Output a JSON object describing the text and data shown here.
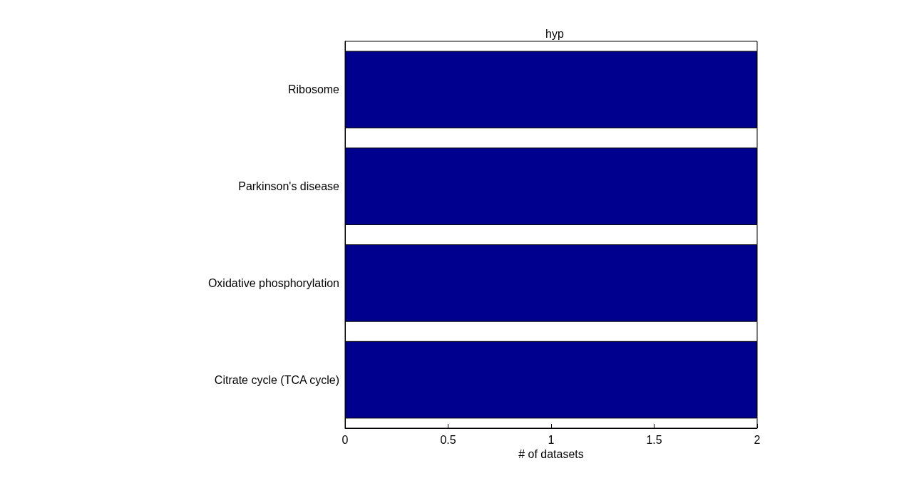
{
  "chart_data": {
    "type": "bar",
    "orientation": "horizontal",
    "title": "hyp",
    "xlabel": "# of datasets",
    "categories": [
      "Ribosome",
      "Parkinson's disease",
      "Oxidative phosphorylation",
      "Citrate cycle (TCA cycle)"
    ],
    "values": [
      2,
      2,
      2,
      2
    ],
    "color": "#00008f",
    "xlim": [
      0,
      2
    ],
    "xticks": [
      0,
      0.5,
      1,
      1.5,
      2
    ],
    "grid": false
  }
}
